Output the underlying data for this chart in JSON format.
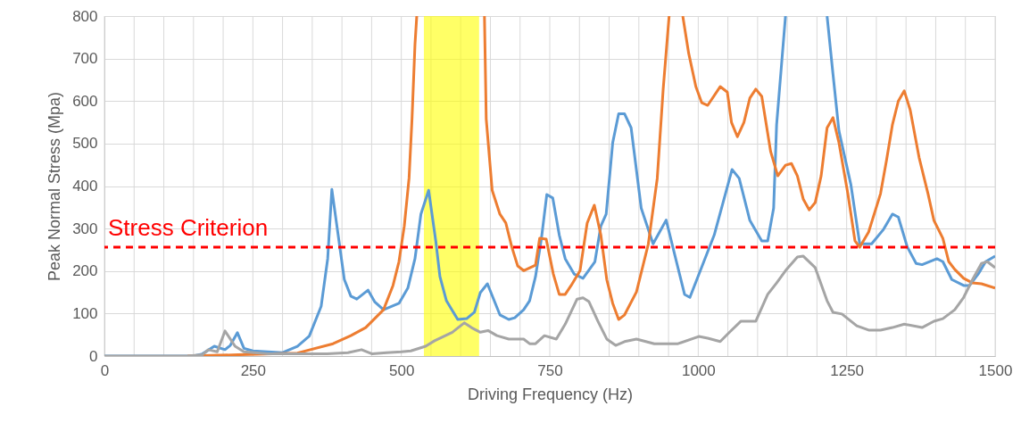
{
  "chart_data": {
    "type": "line",
    "xlabel": "Driving Frequency (Hz)",
    "ylabel": "Peak Normal Stress (Mpa)",
    "xlim": [
      0,
      1500
    ],
    "ylim": [
      0,
      800
    ],
    "xticks": [
      0,
      {
        "value": 50,
        "label": null
      },
      {
        "value": 100,
        "label": null
      },
      {
        "value": 150,
        "label": null
      },
      {
        "value": 200,
        "label": null
      },
      250,
      {
        "value": 300,
        "label": null
      },
      {
        "value": 350,
        "label": null
      },
      {
        "value": 400,
        "label": null
      },
      {
        "value": 450,
        "label": null
      },
      500,
      {
        "value": 550,
        "label": null
      },
      {
        "value": 600,
        "label": null
      },
      {
        "value": 650,
        "label": null
      },
      {
        "value": 700,
        "label": null
      },
      750,
      {
        "value": 800,
        "label": null
      },
      {
        "value": 850,
        "label": null
      },
      {
        "value": 900,
        "label": null
      },
      {
        "value": 950,
        "label": null
      },
      1000,
      {
        "value": 1050,
        "label": null
      },
      {
        "value": 1100,
        "label": null
      },
      {
        "value": 1150,
        "label": null
      },
      {
        "value": 1200,
        "label": null
      },
      1250,
      {
        "value": 1300,
        "label": null
      },
      {
        "value": 1350,
        "label": null
      },
      {
        "value": 1400,
        "label": null
      },
      {
        "value": 1450,
        "label": null
      },
      1500
    ],
    "yticks": [
      0,
      100,
      200,
      300,
      400,
      500,
      600,
      700,
      800
    ],
    "grid": true,
    "marker": "none",
    "line_style": "solid",
    "series": [
      {
        "color": "#5b9bd5",
        "x": [
          0,
          150,
          165,
          185,
          203,
          212,
          224,
          235,
          250,
          275,
          300,
          325,
          345,
          365,
          376,
          383,
          404,
          415,
          425,
          444,
          455,
          470,
          496,
          511,
          523,
          533,
          546,
          558,
          565,
          576,
          595,
          610,
          623,
          633,
          645,
          666,
          681,
          691,
          706,
          716,
          726,
          736,
          745,
          755,
          766,
          776,
          791,
          806,
          826,
          836,
          845,
          856,
          866,
          876,
          887,
          904,
          924,
          946,
          977,
          986,
          1027,
          1057,
          1069,
          1087,
          1107,
          1117,
          1127,
          1132,
          1147,
          1180,
          1217,
          1227,
          1237,
          1257,
          1272,
          1292,
          1312,
          1327,
          1337,
          1352,
          1367,
          1377,
          1402,
          1412,
          1427,
          1447,
          1457,
          1472,
          1484,
          1500
        ],
        "values": [
          0,
          0,
          5,
          23,
          15,
          25,
          55,
          18,
          12,
          10,
          8,
          23,
          47,
          117,
          229,
          392,
          180,
          141,
          134,
          155,
          128,
          109,
          124,
          160,
          229,
          334,
          390,
          271,
          187,
          130,
          86,
          88,
          103,
          149,
          170,
          97,
          86,
          90,
          109,
          130,
          187,
          277,
          380,
          372,
          285,
          229,
          193,
          183,
          222,
          306,
          334,
          502,
          570,
          570,
          537,
          348,
          264,
          320,
          145,
          138,
          285,
          439,
          418,
          319,
          271,
          271,
          348,
          544,
          800,
          null,
          800,
          663,
          530,
          404,
          264,
          264,
          298,
          334,
          327,
          257,
          218,
          215,
          229,
          222,
          180,
          166,
          166,
          194,
          222,
          235
        ]
      },
      {
        "color": "#ed7d31",
        "x": [
          140,
          225,
          325,
          385,
          415,
          440,
          455,
          470,
          486,
          496,
          505,
          513,
          518,
          523,
          526,
          580,
          640,
          643,
          653,
          666,
          676,
          686,
          696,
          706,
          726,
          733,
          744,
          756,
          766,
          776,
          786,
          801,
          813,
          825,
          836,
          846,
          856,
          866,
          876,
          896,
          916,
          931,
          941,
          951,
          962,
          974,
          984,
          996,
          1006,
          1016,
          1037,
          1049,
          1056,
          1066,
          1077,
          1087,
          1097,
          1107,
          1122,
          1134,
          1147,
          1157,
          1167,
          1177,
          1187,
          1197,
          1207,
          1217,
          1227,
          1237,
          1252,
          1264,
          1272,
          1287,
          1307,
          1317,
          1327,
          1337,
          1347,
          1357,
          1372,
          1387,
          1397,
          1412,
          1422,
          1432,
          1447,
          1462,
          1477,
          1500
        ],
        "values": [
          0,
          3,
          7,
          29,
          48,
          67,
          88,
          109,
          166,
          222,
          306,
          418,
          558,
          733,
          800,
          null,
          800,
          558,
          390,
          334,
          313,
          257,
          212,
          201,
          214,
          277,
          275,
          193,
          145,
          145,
          166,
          201,
          313,
          355,
          285,
          180,
          124,
          86,
          97,
          151,
          264,
          418,
          628,
          800,
          null,
          800,
          712,
          634,
          596,
          590,
          634,
          621,
          550,
          516,
          550,
          607,
          628,
          611,
          481,
          424,
          449,
          453,
          424,
          369,
          344,
          361,
          424,
          537,
          561,
          502,
          382,
          271,
          256,
          292,
          382,
          460,
          544,
          600,
          624,
          579,
          467,
          382,
          319,
          277,
          222,
          204,
          183,
          172,
          170,
          160
        ]
      },
      {
        "color": "#a5a5a5",
        "x": [
          0,
          140,
          165,
          175,
          190,
          203,
          220,
          235,
          275,
          375,
          410,
          433,
          451,
          475,
          500,
          516,
          541,
          556,
          571,
          586,
          606,
          618,
          633,
          646,
          661,
          681,
          706,
          716,
          726,
          741,
          761,
          776,
          796,
          806,
          816,
          831,
          846,
          861,
          876,
          896,
          926,
          966,
          1001,
          1016,
          1037,
          1052,
          1072,
          1097,
          1117,
          1132,
          1147,
          1167,
          1177,
          1197,
          1217,
          1227,
          1242,
          1267,
          1287,
          1307,
          1327,
          1347,
          1377,
          1397,
          1412,
          1432,
          1447,
          1462,
          1477,
          1487,
          1500
        ],
        "values": [
          0,
          0,
          3,
          15,
          10,
          59,
          23,
          10,
          5,
          5,
          8,
          15,
          5,
          8,
          10,
          12,
          23,
          36,
          46,
          56,
          78,
          67,
          56,
          60,
          48,
          40,
          40,
          29,
          29,
          48,
          40,
          75,
          134,
          137,
          128,
          82,
          40,
          25,
          34,
          40,
          29,
          29,
          46,
          42,
          34,
          55,
          82,
          82,
          145,
          172,
          201,
          233,
          235,
          208,
          130,
          103,
          99,
          71,
          61,
          61,
          67,
          75,
          67,
          82,
          88,
          109,
          138,
          180,
          218,
          222,
          208
        ]
      }
    ],
    "ref_lines": [
      {
        "axis": "y",
        "value": 256,
        "label": "Stress Criterion",
        "color": "#ff0000",
        "line_style": "dashed"
      }
    ],
    "bands": [
      {
        "axis": "x",
        "from": 538,
        "to": 631,
        "color": "#ffff00"
      }
    ]
  }
}
